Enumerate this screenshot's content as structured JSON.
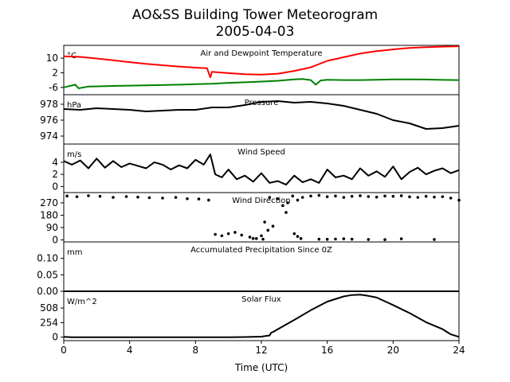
{
  "figure": {
    "title": "AO&SS Building Tower Meteorogram",
    "subtitle": "2005-04-03"
  },
  "chart_data": [
    {
      "type": "line",
      "title": "Air and Dewpoint Temperature",
      "unit": "°C",
      "xlim": [
        0,
        24
      ],
      "ylim": [
        -10,
        17
      ],
      "yticks": [
        -6,
        2,
        10
      ],
      "series": [
        {
          "color": "#ff0000",
          "x": [
            0,
            1,
            2,
            3,
            4,
            5,
            6,
            7,
            8,
            8.7,
            8.9,
            9,
            10,
            11,
            12,
            13,
            14,
            15,
            16,
            17,
            18,
            19,
            20,
            21,
            22,
            23,
            24
          ],
          "y": [
            11,
            10.7,
            9.8,
            8.8,
            7.8,
            6.9,
            6.1,
            5.4,
            4.8,
            4.5,
            -0.5,
            2.5,
            1.8,
            1.2,
            1.0,
            1.5,
            3.0,
            5.0,
            8.5,
            10.5,
            12.5,
            13.8,
            14.8,
            15.6,
            16.0,
            16.3,
            16.5
          ]
        },
        {
          "color": "#008000",
          "x": [
            0,
            0.7,
            0.9,
            1.5,
            3,
            5,
            7,
            9,
            10,
            11,
            12,
            13,
            14,
            14.5,
            15,
            15.3,
            15.6,
            16,
            17,
            18,
            19,
            20,
            21,
            22,
            23,
            24
          ],
          "y": [
            -6,
            -4.5,
            -6.5,
            -5.5,
            -5.2,
            -4.9,
            -4.5,
            -4,
            -3.5,
            -3.2,
            -2.8,
            -2.4,
            -1.6,
            -1.4,
            -2.0,
            -4.5,
            -2.2,
            -1.8,
            -2.0,
            -2.0,
            -1.8,
            -1.6,
            -1.6,
            -1.7,
            -1.9,
            -2.0
          ]
        }
      ]
    },
    {
      "type": "line",
      "title": "Pressure",
      "unit": "hPa",
      "xlim": [
        0,
        24
      ],
      "ylim": [
        973,
        979.2
      ],
      "yticks": [
        974,
        976,
        978
      ],
      "series": [
        {
          "color": "#000000",
          "x": [
            0,
            1,
            2,
            3,
            4,
            5,
            6,
            7,
            8,
            9,
            10,
            11,
            12,
            13,
            14,
            15,
            16,
            17,
            18,
            19,
            20,
            21,
            22,
            23,
            24
          ],
          "y": [
            977.4,
            977.3,
            977.5,
            977.4,
            977.3,
            977.1,
            977.2,
            977.3,
            977.3,
            977.6,
            977.6,
            977.9,
            978.3,
            978.4,
            978.2,
            978.3,
            978.1,
            977.8,
            977.3,
            976.8,
            976.0,
            975.6,
            974.9,
            975.0,
            975.3
          ]
        }
      ]
    },
    {
      "type": "line",
      "title": "Wind Speed",
      "unit": "m/s",
      "xlim": [
        0,
        24
      ],
      "ylim": [
        -1,
        7
      ],
      "yticks": [
        0,
        2,
        4
      ],
      "series": [
        {
          "color": "#000000",
          "x": [
            0,
            0.5,
            1,
            1.5,
            2,
            2.5,
            3,
            3.5,
            4,
            4.5,
            5,
            5.5,
            6,
            6.5,
            7,
            7.5,
            8,
            8.5,
            8.9,
            9.2,
            9.6,
            10,
            10.5,
            11,
            11.5,
            12,
            12.5,
            13,
            13.5,
            14,
            14.5,
            15,
            15.5,
            16,
            16.5,
            17,
            17.5,
            18,
            18.5,
            19,
            19.5,
            20,
            20.5,
            21,
            21.5,
            22,
            22.5,
            23,
            23.5,
            24
          ],
          "y": [
            4.2,
            3.6,
            4.3,
            3.0,
            4.6,
            3.1,
            4.2,
            3.2,
            3.8,
            3.4,
            3.0,
            4.0,
            3.6,
            2.8,
            3.5,
            3.0,
            4.4,
            3.6,
            5.3,
            2.0,
            1.5,
            2.8,
            1.2,
            1.8,
            0.8,
            2.2,
            0.6,
            0.9,
            0.3,
            1.8,
            0.7,
            1.2,
            0.6,
            2.8,
            1.5,
            1.8,
            1.2,
            3.0,
            1.8,
            2.5,
            1.6,
            3.3,
            1.2,
            2.4,
            3.1,
            2.0,
            2.6,
            3.0,
            2.2,
            2.7
          ]
        }
      ]
    },
    {
      "type": "scatter",
      "title": "Wind Direction",
      "xlim": [
        0,
        24
      ],
      "ylim": [
        -15,
        345
      ],
      "yticks": [
        0,
        90,
        180,
        270
      ],
      "series": [
        {
          "color": "#000000",
          "x": [
            0.2,
            0.8,
            1.5,
            2.2,
            3.0,
            3.8,
            4.5,
            5.2,
            6.0,
            6.8,
            7.5,
            8.2,
            8.8,
            9.2,
            9.6,
            10.0,
            10.4,
            10.8,
            11.3,
            11.7,
            12.1,
            12.4,
            12.7,
            13.0,
            13.3,
            13.6,
            13.9,
            14.2,
            14.5,
            15.0,
            15.5,
            16.0,
            16.5,
            17.0,
            17.5,
            18.0,
            18.5,
            19.0,
            19.5,
            20.0,
            20.5,
            21.0,
            21.5,
            22.0,
            22.5,
            23.0,
            23.5,
            24.0,
            11.5,
            12.0,
            12.2,
            12.5,
            13.5,
            14.0,
            14.2,
            14.4,
            15.5,
            16.0,
            16.5,
            17.0,
            17.5,
            18.5,
            19.5,
            20.5,
            22.5
          ],
          "y": [
            320,
            315,
            322,
            318,
            310,
            316,
            312,
            308,
            305,
            310,
            300,
            298,
            290,
            40,
            30,
            45,
            55,
            35,
            20,
            10,
            5,
            70,
            100,
            300,
            250,
            270,
            320,
            290,
            310,
            320,
            325,
            315,
            320,
            310,
            318,
            322,
            316,
            312,
            320,
            318,
            322,
            314,
            310,
            318,
            312,
            315,
            305,
            290,
            10,
            30,
            130,
            310,
            200,
            45,
            25,
            10,
            5,
            4,
            6,
            8,
            5,
            3,
            2,
            8,
            3
          ]
        }
      ]
    },
    {
      "type": "line",
      "title": "Accumulated Precipitation Since 0Z",
      "unit": "mm",
      "xlim": [
        0,
        24
      ],
      "ylim": [
        0,
        0.15
      ],
      "yticks": [
        0.0,
        0.05,
        0.1
      ],
      "series": [
        {
          "color": "#000000",
          "x": [
            0,
            24
          ],
          "y": [
            0,
            0
          ]
        }
      ]
    },
    {
      "type": "line",
      "title": "Solar Flux",
      "unit": "W/m^2",
      "xlim": [
        0,
        24
      ],
      "ylim": [
        -60,
        800
      ],
      "yticks": [
        0,
        254,
        508
      ],
      "series": [
        {
          "color": "#000000",
          "x": [
            0,
            0.5,
            2,
            4,
            6,
            8,
            10,
            11,
            12,
            12.5,
            12.6,
            12.7,
            13,
            14,
            15,
            16,
            17,
            17.5,
            18,
            18.5,
            19,
            20,
            21,
            22,
            23,
            23.5,
            24
          ],
          "y": [
            5,
            0,
            0,
            0,
            0,
            0,
            0,
            2,
            10,
            30,
            80,
            90,
            140,
            300,
            470,
            620,
            710,
            735,
            740,
            720,
            690,
            560,
            420,
            260,
            140,
            50,
            5
          ]
        }
      ]
    }
  ],
  "x_axis": {
    "label": "Time (UTC)",
    "ticks": [
      0,
      4,
      8,
      12,
      16,
      20,
      24
    ]
  }
}
